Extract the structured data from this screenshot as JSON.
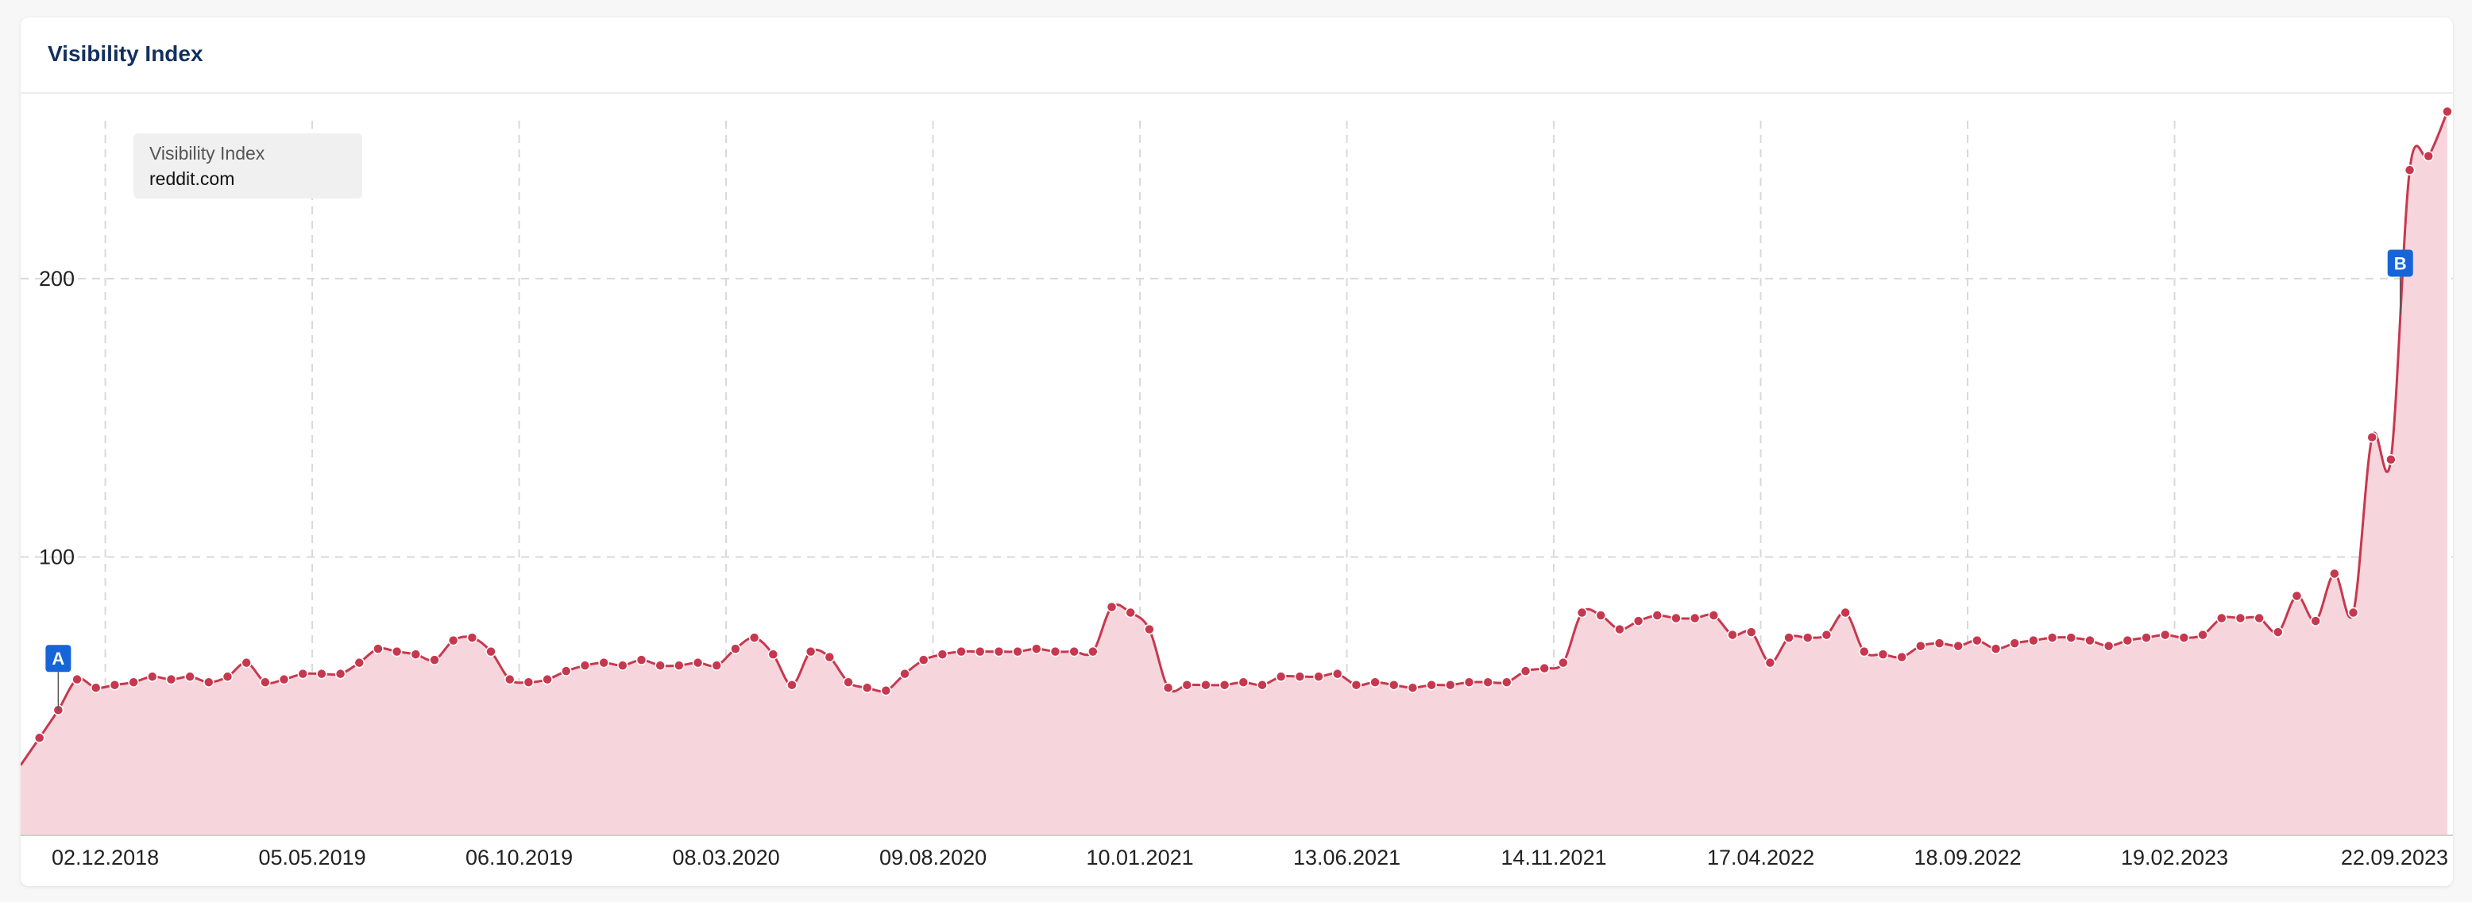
{
  "card": {
    "title": "Visibility Index"
  },
  "colors": {
    "line": "#c7384f",
    "fill": "#f6d6dc",
    "grid": "#d9d9d9",
    "marker": "#1565d8",
    "title": "#13305e"
  },
  "chart_data": {
    "type": "area",
    "title": "Visibility Index",
    "xlabel": "",
    "ylabel": "",
    "ylim": [
      0,
      267
    ],
    "yticks": [
      100,
      200
    ],
    "grid": true,
    "legend": {
      "caption": "Visibility Index",
      "series": "reddit.com",
      "position": "top-left"
    },
    "xtick_labels": [
      "02.12.2018",
      "05.05.2019",
      "06.10.2019",
      "08.03.2020",
      "09.08.2020",
      "10.01.2021",
      "13.06.2021",
      "14.11.2021",
      "17.04.2022",
      "18.09.2022",
      "19.02.2023",
      "22.09.2023"
    ],
    "series": [
      {
        "name": "reddit.com",
        "points": [
          [
            "2018-10-14",
            35
          ],
          [
            "2018-10-28",
            45
          ],
          [
            "2018-11-11",
            56
          ],
          [
            "2018-11-25",
            53
          ],
          [
            "2018-12-09",
            54
          ],
          [
            "2018-12-23",
            55
          ],
          [
            "2019-01-06",
            57
          ],
          [
            "2019-01-20",
            56
          ],
          [
            "2019-02-03",
            57
          ],
          [
            "2019-02-17",
            55
          ],
          [
            "2019-03-03",
            57
          ],
          [
            "2019-03-17",
            62
          ],
          [
            "2019-03-31",
            55
          ],
          [
            "2019-04-14",
            56
          ],
          [
            "2019-04-28",
            58
          ],
          [
            "2019-05-12",
            58
          ],
          [
            "2019-05-26",
            58
          ],
          [
            "2019-06-09",
            62
          ],
          [
            "2019-06-23",
            67
          ],
          [
            "2019-07-07",
            66
          ],
          [
            "2019-07-21",
            65
          ],
          [
            "2019-08-04",
            63
          ],
          [
            "2019-08-18",
            70
          ],
          [
            "2019-09-01",
            71
          ],
          [
            "2019-09-15",
            66
          ],
          [
            "2019-09-29",
            56
          ],
          [
            "2019-10-13",
            55
          ],
          [
            "2019-10-27",
            56
          ],
          [
            "2019-11-10",
            59
          ],
          [
            "2019-11-24",
            61
          ],
          [
            "2019-12-08",
            62
          ],
          [
            "2019-12-22",
            61
          ],
          [
            "2020-01-05",
            63
          ],
          [
            "2020-01-19",
            61
          ],
          [
            "2020-02-02",
            61
          ],
          [
            "2020-02-16",
            62
          ],
          [
            "2020-03-01",
            61
          ],
          [
            "2020-03-15",
            67
          ],
          [
            "2020-03-29",
            71
          ],
          [
            "2020-04-12",
            65
          ],
          [
            "2020-04-26",
            54
          ],
          [
            "2020-05-10",
            66
          ],
          [
            "2020-05-24",
            64
          ],
          [
            "2020-06-07",
            55
          ],
          [
            "2020-06-21",
            53
          ],
          [
            "2020-07-05",
            52
          ],
          [
            "2020-07-19",
            58
          ],
          [
            "2020-08-02",
            63
          ],
          [
            "2020-08-16",
            65
          ],
          [
            "2020-08-30",
            66
          ],
          [
            "2020-09-13",
            66
          ],
          [
            "2020-09-27",
            66
          ],
          [
            "2020-10-11",
            66
          ],
          [
            "2020-10-25",
            67
          ],
          [
            "2020-11-08",
            66
          ],
          [
            "2020-11-22",
            66
          ],
          [
            "2020-12-06",
            66
          ],
          [
            "2020-12-20",
            82
          ],
          [
            "2021-01-03",
            80
          ],
          [
            "2021-01-17",
            74
          ],
          [
            "2021-01-31",
            53
          ],
          [
            "2021-02-14",
            54
          ],
          [
            "2021-02-28",
            54
          ],
          [
            "2021-03-14",
            54
          ],
          [
            "2021-03-28",
            55
          ],
          [
            "2021-04-11",
            54
          ],
          [
            "2021-04-25",
            57
          ],
          [
            "2021-05-09",
            57
          ],
          [
            "2021-05-23",
            57
          ],
          [
            "2021-06-06",
            58
          ],
          [
            "2021-06-20",
            54
          ],
          [
            "2021-07-04",
            55
          ],
          [
            "2021-07-18",
            54
          ],
          [
            "2021-08-01",
            53
          ],
          [
            "2021-08-15",
            54
          ],
          [
            "2021-08-29",
            54
          ],
          [
            "2021-09-12",
            55
          ],
          [
            "2021-09-26",
            55
          ],
          [
            "2021-10-10",
            55
          ],
          [
            "2021-10-24",
            59
          ],
          [
            "2021-11-07",
            60
          ],
          [
            "2021-11-21",
            62
          ],
          [
            "2021-12-05",
            80
          ],
          [
            "2021-12-19",
            79
          ],
          [
            "2022-01-02",
            74
          ],
          [
            "2022-01-16",
            77
          ],
          [
            "2022-01-30",
            79
          ],
          [
            "2022-02-13",
            78
          ],
          [
            "2022-02-27",
            78
          ],
          [
            "2022-03-13",
            79
          ],
          [
            "2022-03-27",
            72
          ],
          [
            "2022-04-10",
            73
          ],
          [
            "2022-04-24",
            62
          ],
          [
            "2022-05-08",
            71
          ],
          [
            "2022-05-22",
            71
          ],
          [
            "2022-06-05",
            72
          ],
          [
            "2022-06-19",
            80
          ],
          [
            "2022-07-03",
            66
          ],
          [
            "2022-07-17",
            65
          ],
          [
            "2022-07-31",
            64
          ],
          [
            "2022-08-14",
            68
          ],
          [
            "2022-08-28",
            69
          ],
          [
            "2022-09-11",
            68
          ],
          [
            "2022-09-25",
            70
          ],
          [
            "2022-10-09",
            67
          ],
          [
            "2022-10-23",
            69
          ],
          [
            "2022-11-06",
            70
          ],
          [
            "2022-11-20",
            71
          ],
          [
            "2022-12-04",
            71
          ],
          [
            "2022-12-18",
            70
          ],
          [
            "2023-01-01",
            68
          ],
          [
            "2023-01-15",
            70
          ],
          [
            "2023-01-29",
            71
          ],
          [
            "2023-02-12",
            72
          ],
          [
            "2023-02-26",
            71
          ],
          [
            "2023-03-12",
            72
          ],
          [
            "2023-03-26",
            78
          ],
          [
            "2023-04-09",
            78
          ],
          [
            "2023-04-23",
            78
          ],
          [
            "2023-05-07",
            73
          ],
          [
            "2023-05-21",
            86
          ],
          [
            "2023-06-04",
            77
          ],
          [
            "2023-06-18",
            94
          ],
          [
            "2023-07-02",
            80
          ],
          [
            "2023-07-16",
            143
          ],
          [
            "2023-07-30",
            135
          ],
          [
            "2023-08-13",
            239
          ],
          [
            "2023-08-27",
            244
          ],
          [
            "2023-09-10",
            260
          ]
        ]
      }
    ],
    "annotations": [
      {
        "label": "A",
        "date": "2018-10-28"
      },
      {
        "label": "B",
        "date": "2023-08-06"
      }
    ]
  }
}
